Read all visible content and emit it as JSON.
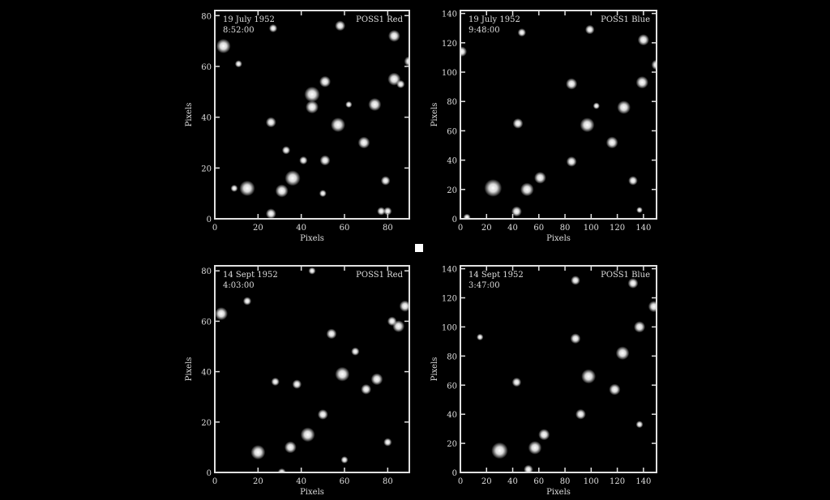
{
  "colors": {
    "background": "#000000",
    "axes": "#e0e0e0",
    "stars": "#ffffff"
  },
  "panels": [
    {
      "date": "19 July 1952",
      "time": "8:52:00",
      "band": "POSS1 Red",
      "xlabel": "Pixels",
      "ylabel": "Pixels",
      "xlim": [
        0,
        90
      ],
      "ylim": [
        0,
        82
      ],
      "xticks": [
        0,
        20,
        40,
        60,
        80
      ],
      "yticks": [
        0,
        20,
        40,
        60,
        80
      ],
      "stars": [
        [
          15,
          12,
          3
        ],
        [
          36,
          16,
          3
        ],
        [
          31,
          11,
          2.5
        ],
        [
          26,
          2,
          2
        ],
        [
          45,
          49,
          3
        ],
        [
          45,
          44,
          2.5
        ],
        [
          57,
          37,
          2.8
        ],
        [
          51,
          54,
          2.2
        ],
        [
          74,
          45,
          2.5
        ],
        [
          69,
          30,
          2.3
        ],
        [
          51,
          23,
          2
        ],
        [
          26,
          38,
          2
        ],
        [
          4,
          68,
          2.8
        ],
        [
          83,
          72,
          2.3
        ],
        [
          58,
          76,
          2
        ],
        [
          90,
          62,
          2
        ],
        [
          83,
          55,
          2.5
        ],
        [
          86,
          53,
          1.6
        ],
        [
          79,
          15,
          1.8
        ],
        [
          41,
          23,
          1.6
        ],
        [
          33,
          27,
          1.6
        ],
        [
          27,
          75,
          1.6
        ],
        [
          80,
          3,
          1.6
        ],
        [
          77,
          3,
          1.6
        ],
        [
          9,
          12,
          1.4
        ],
        [
          11,
          61,
          1.4
        ],
        [
          50,
          10,
          1.4
        ],
        [
          62,
          45,
          1.3
        ]
      ]
    },
    {
      "date": "19 July 1952",
      "time": "9:48:00",
      "band": "POSS1 Blue",
      "xlabel": "Pixels",
      "ylabel": "Pixels",
      "xlim": [
        0,
        150
      ],
      "ylim": [
        0,
        142
      ],
      "xticks": [
        0,
        20,
        40,
        60,
        80,
        100,
        120,
        140
      ],
      "yticks": [
        0,
        20,
        40,
        60,
        80,
        100,
        120,
        140
      ],
      "stars": [
        [
          25,
          21,
          3.4
        ],
        [
          51,
          20,
          2.6
        ],
        [
          61,
          28,
          2.3
        ],
        [
          43,
          5,
          2
        ],
        [
          97,
          64,
          2.8
        ],
        [
          125,
          76,
          2.6
        ],
        [
          116,
          52,
          2.3
        ],
        [
          85,
          92,
          2.2
        ],
        [
          85,
          39,
          2
        ],
        [
          44,
          65,
          2
        ],
        [
          140,
          122,
          2.2
        ],
        [
          99,
          129,
          1.8
        ],
        [
          139,
          93,
          2.4
        ],
        [
          132,
          26,
          1.8
        ],
        [
          47,
          127,
          1.6
        ],
        [
          1,
          114,
          2
        ],
        [
          150,
          105,
          2
        ],
        [
          5,
          1,
          1.4
        ],
        [
          104,
          77,
          1.3
        ],
        [
          137,
          6,
          1.2
        ]
      ]
    },
    {
      "date": "14 Sept 1952",
      "time": "4:03:00",
      "band": "POSS1 Red",
      "xlabel": "Pixels",
      "ylabel": "Pixels",
      "xlim": [
        0,
        90
      ],
      "ylim": [
        0,
        82
      ],
      "xticks": [
        0,
        20,
        40,
        60,
        80
      ],
      "yticks": [
        0,
        20,
        40,
        60,
        80
      ],
      "stars": [
        [
          20,
          8,
          2.8
        ],
        [
          43,
          15,
          2.8
        ],
        [
          35,
          10,
          2.3
        ],
        [
          59,
          39,
          2.8
        ],
        [
          75,
          37,
          2.3
        ],
        [
          50,
          23,
          2
        ],
        [
          3,
          63,
          2.5
        ],
        [
          88,
          66,
          2.2
        ],
        [
          85,
          58,
          2.3
        ],
        [
          82,
          60,
          1.8
        ],
        [
          70,
          33,
          2
        ],
        [
          54,
          55,
          2
        ],
        [
          38,
          35,
          1.8
        ],
        [
          31,
          0,
          1.6
        ],
        [
          15,
          68,
          1.6
        ],
        [
          65,
          48,
          1.6
        ],
        [
          28,
          36,
          1.6
        ],
        [
          80,
          12,
          1.6
        ],
        [
          60,
          5,
          1.4
        ],
        [
          45,
          80,
          1.4
        ]
      ]
    },
    {
      "date": "14 Sept 1952",
      "time": "3:47:00",
      "band": "POSS1 Blue",
      "xlabel": "Pixels",
      "ylabel": "Pixels",
      "xlim": [
        0,
        150
      ],
      "ylim": [
        0,
        142
      ],
      "xticks": [
        0,
        20,
        40,
        60,
        80,
        100,
        120,
        140
      ],
      "yticks": [
        0,
        20,
        40,
        60,
        80,
        100,
        120,
        140
      ],
      "stars": [
        [
          30,
          15,
          3.2
        ],
        [
          57,
          17,
          2.6
        ],
        [
          64,
          26,
          2.2
        ],
        [
          98,
          66,
          2.8
        ],
        [
          124,
          82,
          2.6
        ],
        [
          118,
          57,
          2.2
        ],
        [
          88,
          92,
          2
        ],
        [
          92,
          40,
          2
        ],
        [
          43,
          62,
          1.8
        ],
        [
          148,
          114,
          2.2
        ],
        [
          132,
          130,
          2
        ],
        [
          88,
          132,
          1.8
        ],
        [
          137,
          100,
          2.2
        ],
        [
          52,
          2,
          1.8
        ],
        [
          137,
          33,
          1.4
        ],
        [
          15,
          93,
          1.3
        ]
      ]
    }
  ]
}
